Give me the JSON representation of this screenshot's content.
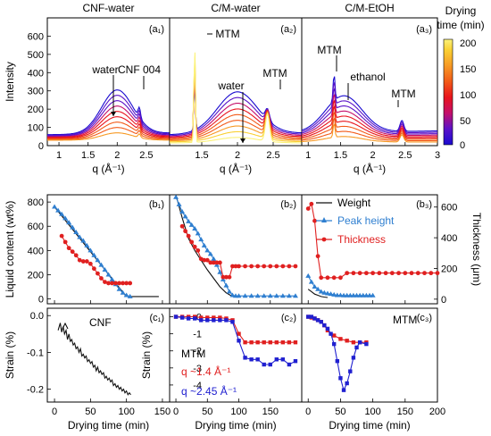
{
  "figure": {
    "cbar": {
      "title_line1": "Drying",
      "title_line2": "time (min)",
      "ticks": [
        "200",
        "150",
        "100",
        "50",
        "0"
      ],
      "colors": [
        "#1a0bd0",
        "#5a12c8",
        "#c40f6a",
        "#e8141c",
        "#f25a18",
        "#f79a25",
        "#fad033",
        "#fbf27a"
      ]
    }
  },
  "chart_data": [
    {
      "id": "a1",
      "type": "line",
      "title": "CNF-water",
      "panel_label": "(a₁)",
      "xlabel": "q (Å⁻¹)",
      "ylabel": "Intensity",
      "xlim": [
        0.8,
        2.9
      ],
      "ylim": [
        0,
        700
      ],
      "xticks": [
        "1",
        "1.5",
        "2",
        "2.5"
      ],
      "yticks": [
        "0",
        "100",
        "200",
        "300",
        "400",
        "500",
        "600"
      ],
      "annotations": [
        "water",
        "CNF 004"
      ],
      "n_curves": 9,
      "peaks": [
        {
          "center": 2.0,
          "width": 0.38,
          "top_height": 240,
          "bottom_height": 40
        },
        {
          "center": 2.38,
          "width": 0.03,
          "top_height": 55,
          "bottom_height": 20
        }
      ],
      "baseline": {
        "top": 60,
        "bottom": 30
      }
    },
    {
      "id": "a2",
      "type": "line",
      "title": "C/M-water",
      "panel_label": "(a₂)",
      "xlabel": "q (Å⁻¹)",
      "ylim": [
        0,
        700
      ],
      "xlim": [
        1.05,
        2.9
      ],
      "xticks": [
        "1.5",
        "2",
        "2.5"
      ],
      "annotations": [
        "MTM",
        "water",
        "MTM"
      ],
      "n_curves": 9,
      "peaks": [
        {
          "center": 2.0,
          "width": 0.4,
          "top_height": 230,
          "bottom_height": 30
        },
        {
          "center": 1.4,
          "width": 0.015,
          "top_height": 270,
          "bottom_height": 540
        },
        {
          "center": 2.42,
          "width": 0.04,
          "top_height": 60,
          "bottom_height": 150
        }
      ],
      "baseline": {
        "top": 60,
        "bottom": 15
      }
    },
    {
      "id": "a3",
      "type": "line",
      "title": "C/M-EtOH",
      "panel_label": "(a₃)",
      "xlabel": "q (Å⁻¹)",
      "ylim": [
        0,
        700
      ],
      "xlim": [
        0.9,
        3.0
      ],
      "xticks": [
        "1",
        "1.5",
        "2",
        "2.5",
        "3"
      ],
      "annotations": [
        "MTM",
        "ethanol",
        "MTM"
      ],
      "n_curves": 9,
      "peaks": [
        {
          "center": 1.55,
          "width": 0.4,
          "top_height": 200,
          "bottom_height": 30
        },
        {
          "center": 1.4,
          "width": 0.02,
          "top_height": 150,
          "bottom_height": 80
        },
        {
          "center": 2.45,
          "width": 0.04,
          "top_height": 60,
          "bottom_height": 40
        }
      ],
      "baseline": {
        "top": 70,
        "bottom": 20
      }
    },
    {
      "id": "b1",
      "type": "line",
      "panel_label": "(b₁)",
      "ylabel": "Liquid content (wt%)",
      "xlim": [
        -10,
        160
      ],
      "ylim": [
        -40,
        860
      ],
      "yticks": [
        "0",
        "200",
        "400",
        "600",
        "800"
      ],
      "series": [
        {
          "key": "weight",
          "x": [
            0,
            100,
            145
          ],
          "y": [
            760,
            20,
            20
          ]
        },
        {
          "key": "peak",
          "x": [
            0,
            5,
            10,
            15,
            20,
            25,
            30,
            35,
            40,
            45,
            50,
            55,
            60,
            65,
            70,
            75,
            80,
            85,
            90,
            95,
            100,
            105
          ],
          "y": [
            760,
            730,
            700,
            665,
            630,
            590,
            550,
            510,
            480,
            440,
            400,
            360,
            320,
            280,
            240,
            200,
            160,
            120,
            80,
            50,
            30,
            20
          ]
        },
        {
          "key": "thick",
          "x": [
            10,
            15,
            20,
            25,
            30,
            35,
            40,
            45,
            50,
            55,
            60,
            65,
            70,
            75,
            80,
            85,
            90,
            95,
            100,
            105
          ],
          "y": [
            520,
            470,
            420,
            390,
            360,
            320,
            310,
            310,
            290,
            250,
            210,
            170,
            140,
            130,
            130,
            130,
            130,
            130,
            130,
            130
          ]
        }
      ]
    },
    {
      "id": "b2",
      "type": "line",
      "panel_label": "(b₂)",
      "xlim": [
        -10,
        200
      ],
      "ylim": [
        -40,
        860
      ],
      "series": [
        {
          "key": "weight",
          "x": [
            0,
            10,
            20,
            30,
            40,
            50,
            60,
            70,
            80,
            90,
            100
          ],
          "y": [
            870,
            670,
            500,
            400,
            320,
            240,
            170,
            100,
            50,
            20,
            15
          ]
        },
        {
          "key": "peak",
          "x": [
            0,
            5,
            10,
            15,
            20,
            25,
            30,
            35,
            40,
            45,
            50,
            55,
            60,
            65,
            70,
            75,
            80,
            85,
            90,
            95,
            100,
            110,
            120,
            130,
            140,
            150,
            160,
            170,
            180,
            190
          ],
          "y": [
            840,
            780,
            720,
            680,
            640,
            610,
            580,
            540,
            490,
            440,
            400,
            370,
            330,
            280,
            220,
            160,
            110,
            60,
            30,
            25,
            25,
            25,
            25,
            25,
            25,
            25,
            25,
            25,
            25,
            25
          ]
        },
        {
          "key": "thick",
          "x": [
            10,
            15,
            20,
            25,
            30,
            35,
            40,
            45,
            50,
            55,
            60,
            65,
            70,
            75,
            80,
            85,
            90,
            95,
            100,
            110,
            120,
            130,
            140,
            150,
            160,
            170,
            180,
            190
          ],
          "y": [
            600,
            560,
            520,
            470,
            430,
            400,
            330,
            320,
            320,
            300,
            300,
            300,
            300,
            180,
            180,
            180,
            270,
            270,
            270,
            270,
            270,
            270,
            270,
            270,
            270,
            270,
            270,
            270
          ]
        }
      ]
    },
    {
      "id": "b3",
      "type": "line",
      "panel_label": "(b₃)",
      "ylabel_right": "Thickness (μm)",
      "xlim": [
        -10,
        200
      ],
      "ylim": [
        -40,
        860
      ],
      "y2lim": [
        -30,
        680
      ],
      "y2ticks": [
        "0",
        "200",
        "400",
        "600"
      ],
      "legend": {
        "weight": "Weight",
        "peak": "Peak height",
        "thick": "Thickness"
      },
      "series": [
        {
          "key": "weight",
          "x": [
            0,
            5,
            10,
            15,
            20,
            25,
            30
          ],
          "y": [
            80,
            60,
            40,
            30,
            20,
            15,
            12
          ]
        },
        {
          "key": "peak",
          "x": [
            0,
            5,
            10,
            15,
            20,
            25,
            30,
            35,
            40,
            45,
            50,
            55,
            60,
            65,
            70,
            75,
            80,
            85,
            90,
            95,
            100
          ],
          "y": [
            190,
            140,
            100,
            80,
            60,
            50,
            45,
            40,
            35,
            30,
            30,
            28,
            28,
            28,
            28,
            28,
            28,
            28,
            28,
            28,
            28
          ]
        },
        {
          "key": "thick",
          "axis": "y2",
          "x": [
            0,
            5,
            10,
            15,
            20,
            30,
            40,
            50,
            60,
            70,
            80,
            90,
            100,
            110,
            120,
            130,
            140,
            150,
            160,
            170,
            180,
            190,
            200
          ],
          "y": [
            590,
            620,
            510,
            280,
            140,
            140,
            140,
            140,
            170,
            170,
            170,
            170,
            170,
            170,
            170,
            170,
            170,
            170,
            170,
            170,
            170,
            170,
            170
          ]
        }
      ]
    },
    {
      "id": "c1",
      "type": "line",
      "panel_label": "(c₁)",
      "label": "CNF",
      "xlabel": "Drying time (min)",
      "ylabel": "Strain (%)",
      "xlim": [
        -10,
        160
      ],
      "ylim": [
        -0.235,
        0.02
      ],
      "xticks": [
        "0",
        "50",
        "100",
        "150"
      ],
      "yticks": [
        "0.0",
        "-0.1",
        "-0.2"
      ],
      "series": [
        {
          "key": "strain",
          "x": [
            5,
            8,
            10,
            12,
            14,
            16,
            18,
            20,
            22,
            24,
            26,
            28,
            30,
            32,
            34,
            36,
            38,
            40,
            42,
            44,
            46,
            48,
            50,
            52,
            54,
            56,
            58,
            60,
            62,
            64,
            66,
            68,
            70,
            72,
            74,
            76,
            78,
            80,
            82,
            84,
            86,
            88,
            90,
            92,
            94,
            96,
            98,
            100,
            102,
            104,
            106
          ],
          "y": [
            -0.04,
            -0.02,
            -0.045,
            -0.03,
            -0.05,
            -0.04,
            -0.065,
            -0.05,
            -0.07,
            -0.065,
            -0.08,
            -0.075,
            -0.09,
            -0.085,
            -0.1,
            -0.09,
            -0.11,
            -0.105,
            -0.115,
            -0.11,
            -0.125,
            -0.12,
            -0.13,
            -0.125,
            -0.14,
            -0.135,
            -0.15,
            -0.14,
            -0.155,
            -0.15,
            -0.16,
            -0.155,
            -0.17,
            -0.165,
            -0.175,
            -0.17,
            -0.18,
            -0.175,
            -0.19,
            -0.185,
            -0.195,
            -0.19,
            -0.2,
            -0.195,
            -0.205,
            -0.2,
            -0.21,
            -0.205,
            -0.215,
            -0.21,
            -0.215
          ]
        }
      ]
    },
    {
      "id": "c2",
      "type": "line",
      "panel_label": "(c₂)",
      "label": "MTM",
      "xlabel": "Drying time (min)",
      "ylabel": "Strain (%)",
      "xlim": [
        -10,
        200
      ],
      "ylim": [
        -5.0,
        0.5
      ],
      "xticks": [
        "0",
        "50",
        "100",
        "150"
      ],
      "yticks": [
        "0",
        "-1",
        "-2",
        "-3",
        "-4"
      ],
      "legend": {
        "q14": "q ~1.4 Å⁻¹",
        "q245": "q ~2.45 Å⁻¹"
      },
      "series": [
        {
          "key": "q14",
          "color": "#e02020",
          "x": [
            0,
            10,
            20,
            30,
            40,
            50,
            60,
            70,
            80,
            90,
            100,
            110,
            120,
            130,
            140,
            150,
            160,
            170,
            180,
            190
          ],
          "y": [
            0,
            0,
            0,
            0,
            -0.05,
            -0.05,
            -0.05,
            -0.05,
            -0.1,
            -0.2,
            -1.0,
            -1.5,
            -1.5,
            -1.5,
            -1.5,
            -1.5,
            -1.5,
            -1.5,
            -1.5,
            -1.5
          ]
        },
        {
          "key": "q245",
          "color": "#2020d0",
          "x": [
            0,
            10,
            20,
            30,
            40,
            50,
            60,
            70,
            80,
            90,
            100,
            110,
            120,
            130,
            140,
            150,
            160,
            170,
            180,
            190
          ],
          "y": [
            0,
            -0.05,
            -0.1,
            -0.1,
            -0.2,
            -0.2,
            -0.2,
            -0.2,
            -0.2,
            -0.3,
            -1.4,
            -2.4,
            -2.5,
            -2.5,
            -2.8,
            -2.8,
            -2.5,
            -2.5,
            -2.8,
            -2.6
          ]
        }
      ]
    },
    {
      "id": "c3",
      "type": "line",
      "panel_label": "(c₃)",
      "label": "MTM",
      "xlabel": "Drying time (min)",
      "xlim": [
        -10,
        200
      ],
      "ylim": [
        -5.0,
        0.5
      ],
      "xticks": [
        "0",
        "50",
        "100",
        "150",
        "200"
      ],
      "series": [
        {
          "key": "q14",
          "color": "#e02020",
          "x": [
            0,
            5,
            10,
            15,
            20,
            25,
            30,
            40,
            50,
            60,
            70,
            80,
            90
          ],
          "y": [
            0,
            -0.05,
            -0.1,
            -0.2,
            -0.3,
            -0.5,
            -0.8,
            -1.1,
            -1.3,
            -1.4,
            -1.5,
            -1.5,
            -1.5
          ]
        },
        {
          "key": "q245",
          "color": "#2020d0",
          "x": [
            0,
            5,
            10,
            15,
            20,
            25,
            30,
            35,
            40,
            45,
            50,
            55,
            60,
            65,
            70,
            75,
            80,
            90
          ],
          "y": [
            0,
            0,
            -0.1,
            -0.2,
            -0.3,
            -0.5,
            -0.7,
            -1.0,
            -1.6,
            -2.6,
            -3.6,
            -4.3,
            -3.9,
            -3.2,
            -2.4,
            -1.8,
            -1.5,
            -1.6
          ]
        }
      ]
    }
  ]
}
